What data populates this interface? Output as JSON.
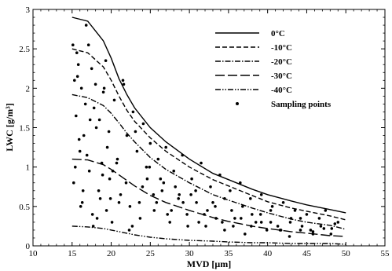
{
  "chart_data": {
    "type": "line",
    "xlabel": "MVD [μm]",
    "ylabel": "LWC [g/m³]",
    "xlim": [
      10,
      55
    ],
    "ylim": [
      0,
      3
    ],
    "x_ticks": [
      10,
      15,
      20,
      25,
      30,
      35,
      40,
      45,
      50,
      55
    ],
    "y_ticks": [
      0,
      0.5,
      1,
      1.5,
      2,
      2.5,
      3
    ],
    "x_tick_labels": [
      "10",
      "15",
      "20",
      "25",
      "30",
      "35",
      "40",
      "45",
      "50",
      "55"
    ],
    "y_tick_labels": [
      "0",
      "0.5",
      "1",
      "1.5",
      "2",
      "2.5",
      "3"
    ],
    "grid": false,
    "legend_position": "top-right",
    "series": [
      {
        "name": "0°C",
        "style": "solid",
        "x": [
          15,
          17,
          19,
          20,
          21,
          22,
          23,
          25,
          27,
          30,
          33,
          35,
          38,
          40,
          43,
          45,
          48,
          50
        ],
        "y": [
          2.9,
          2.85,
          2.6,
          2.38,
          2.12,
          1.92,
          1.75,
          1.5,
          1.32,
          1.1,
          0.92,
          0.84,
          0.72,
          0.65,
          0.57,
          0.52,
          0.46,
          0.42
        ]
      },
      {
        "name": "-10°C",
        "style": "dashed",
        "x": [
          15,
          17,
          19,
          20,
          21,
          22,
          23,
          25,
          27,
          30,
          33,
          35,
          38,
          40,
          43,
          45,
          48,
          50
        ],
        "y": [
          2.5,
          2.45,
          2.27,
          2.1,
          1.9,
          1.72,
          1.58,
          1.37,
          1.2,
          1.0,
          0.84,
          0.76,
          0.64,
          0.56,
          0.48,
          0.44,
          0.38,
          0.33
        ]
      },
      {
        "name": "-20°C",
        "style": "dashdot",
        "x": [
          15,
          17,
          19,
          20,
          21,
          22,
          23,
          25,
          27,
          30,
          33,
          35,
          38,
          40,
          43,
          45,
          48,
          50
        ],
        "y": [
          1.92,
          1.88,
          1.78,
          1.68,
          1.56,
          1.43,
          1.32,
          1.12,
          0.97,
          0.8,
          0.65,
          0.58,
          0.48,
          0.42,
          0.34,
          0.3,
          0.26,
          0.21
        ]
      },
      {
        "name": "-30°C",
        "style": "longdash",
        "x": [
          15,
          17,
          19,
          20,
          21,
          22,
          23,
          25,
          27,
          30,
          33,
          35,
          38,
          40,
          43,
          45,
          48,
          50
        ],
        "y": [
          1.1,
          1.09,
          1.03,
          0.97,
          0.9,
          0.83,
          0.76,
          0.64,
          0.55,
          0.45,
          0.36,
          0.31,
          0.25,
          0.22,
          0.18,
          0.16,
          0.13,
          0.12
        ]
      },
      {
        "name": "-40°C",
        "style": "dashdotdot",
        "x": [
          15,
          17,
          19,
          20,
          21,
          22,
          23,
          25,
          27,
          30,
          33,
          35,
          38,
          40,
          43,
          45,
          48,
          50
        ],
        "y": [
          0.25,
          0.24,
          0.22,
          0.2,
          0.18,
          0.16,
          0.14,
          0.11,
          0.09,
          0.07,
          0.06,
          0.05,
          0.04,
          0.04,
          0.03,
          0.03,
          0.03,
          0.02
        ]
      }
    ],
    "scatter": {
      "name": "Sampling points",
      "x": [
        15.1,
        15.3,
        15.5,
        15.8,
        16.0,
        16.2,
        16.5,
        16.8,
        17.2,
        17.5,
        17.8,
        18.1,
        18.4,
        18.8,
        19.1,
        19.5,
        19.8,
        15.2,
        15.6,
        15.9,
        16.3,
        16.7,
        17.1,
        17.6,
        18.0,
        18.5,
        18.9,
        19.3,
        19.7,
        20.1,
        20.4,
        20.8,
        21.2,
        21.6,
        22.0,
        22.4,
        22.8,
        23.3,
        23.7,
        24.1,
        24.6,
        25.0,
        25.5,
        26.0,
        26.5,
        27.0,
        27.5,
        28.0,
        28.6,
        29.1,
        29.7,
        30.3,
        30.9,
        31.5,
        32.1,
        32.7,
        33.3,
        33.9,
        34.5,
        35.2,
        35.8,
        36.5,
        37.1,
        37.8,
        38.5,
        39.2,
        39.9,
        40.6,
        41.3,
        42.0,
        42.8,
        43.5,
        44.2,
        45.0,
        45.8,
        46.6,
        47.4,
        48.2,
        49.0,
        15.4,
        16.1,
        16.9,
        17.7,
        18.6,
        19.4,
        20.2,
        21.0,
        21.9,
        22.7,
        23.6,
        24.5,
        25.4,
        26.3,
        27.2,
        28.2,
        29.2,
        30.2,
        31.2,
        32.3,
        33.4,
        34.5,
        35.6,
        36.8,
        38.0,
        39.2,
        40.4,
        41.6,
        42.9,
        44.2,
        45.5,
        46.8,
        48.1,
        15.7,
        16.4,
        17.3,
        18.2,
        19.0,
        19.9,
        20.7,
        21.5,
        22.3,
        23.1,
        24.0,
        24.9,
        25.8,
        26.7,
        27.7,
        28.7,
        29.8,
        30.8,
        31.9,
        33.0,
        34.2,
        35.4,
        36.6,
        37.9,
        39.1,
        40.4,
        41.7,
        43.0,
        44.4,
        45.8,
        47.2,
        48.6
      ],
      "y": [
        2.55,
        2.1,
        1.65,
        2.3,
        1.2,
        2.0,
        1.4,
        2.8,
        0.95,
        2.25,
        1.75,
        1.5,
        0.7,
        1.05,
        2.0,
        1.25,
        0.85,
        0.8,
        2.45,
        1.35,
        0.55,
        1.8,
        2.55,
        0.4,
        2.05,
        1.6,
        0.9,
        2.35,
        1.45,
        0.3,
        1.85,
        1.1,
        0.65,
        2.05,
        1.4,
        0.5,
        1.7,
        1.2,
        0.35,
        1.55,
        0.85,
        1.3,
        0.45,
        1.1,
        0.7,
        1.25,
        0.3,
        0.95,
        0.6,
        1.15,
        0.4,
        0.85,
        0.55,
        1.05,
        0.25,
        0.75,
        0.5,
        0.9,
        0.2,
        0.7,
        0.35,
        0.8,
        0.15,
        0.6,
        0.3,
        0.65,
        0.2,
        0.5,
        0.25,
        0.55,
        0.12,
        0.45,
        0.2,
        0.4,
        0.15,
        0.35,
        0.45,
        0.22,
        0.3,
        1.0,
        0.5,
        1.15,
        0.25,
        0.6,
        0.45,
        0.95,
        0.55,
        0.8,
        0.25,
        0.55,
        1.0,
        0.65,
        0.85,
        0.4,
        0.75,
        0.55,
        0.65,
        0.3,
        0.45,
        0.35,
        0.6,
        0.25,
        0.5,
        0.4,
        0.3,
        0.45,
        0.2,
        0.3,
        0.35,
        0.2,
        0.25,
        0.15,
        2.15,
        0.7,
        1.6,
        0.35,
        1.95,
        0.6,
        1.05,
        2.1,
        0.2,
        1.45,
        0.75,
        1.0,
        0.55,
        0.8,
        0.45,
        0.65,
        0.25,
        0.7,
        0.4,
        0.55,
        0.3,
        0.45,
        0.35,
        0.25,
        0.4,
        0.3,
        0.2,
        0.35,
        0.25,
        0.18,
        0.22,
        0.28
      ]
    }
  }
}
